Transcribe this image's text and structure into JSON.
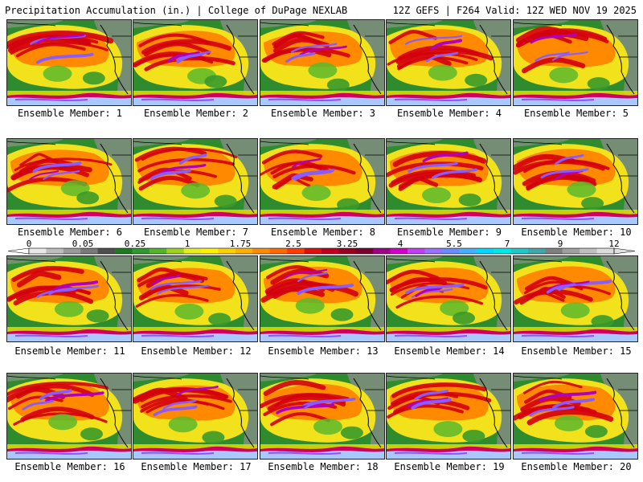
{
  "header": {
    "left": "Precipitation Accumulation (in.) | College of DuPage NEXLAB",
    "right": "12Z GEFS | F264 Valid: 12Z WED NOV 19 2025"
  },
  "members": [
    "Ensemble Member: 1",
    "Ensemble Member: 2",
    "Ensemble Member: 3",
    "Ensemble Member: 4",
    "Ensemble Member: 5",
    "Ensemble Member: 6",
    "Ensemble Member: 7",
    "Ensemble Member: 8",
    "Ensemble Member: 9",
    "Ensemble Member: 10",
    "Ensemble Member: 11",
    "Ensemble Member: 12",
    "Ensemble Member: 13",
    "Ensemble Member: 14",
    "Ensemble Member: 15",
    "Ensemble Member: 16",
    "Ensemble Member: 17",
    "Ensemble Member: 18",
    "Ensemble Member: 19",
    "Ensemble Member: 20"
  ],
  "colorbar": {
    "labels": [
      "0",
      "0.05",
      "0.25",
      "1",
      "1.75",
      "2.5",
      "3.25",
      "4",
      "5.5",
      "7",
      "9",
      "12"
    ],
    "colors": [
      "#e8e8e8",
      "#bdbdbd",
      "#9a9a9a",
      "#7a7a7a",
      "#4f4f4f",
      "#1e7a1e",
      "#2f9a2f",
      "#52b52a",
      "#9ed21c",
      "#e6ef1a",
      "#fff200",
      "#ffd000",
      "#ffb000",
      "#ff8c00",
      "#ff6a00",
      "#ff3d00",
      "#e01010",
      "#c00020",
      "#9a0020",
      "#7a0030",
      "#a0008a",
      "#d000c8",
      "#c040f0",
      "#9a70ff",
      "#6a8cff",
      "#44b0ff",
      "#00d8ff",
      "#00e8e8",
      "#20c8c8",
      "#40a8a8",
      "#808080",
      "#a0a0a0",
      "#c0c0c0",
      "#dcdcdc"
    ]
  }
}
